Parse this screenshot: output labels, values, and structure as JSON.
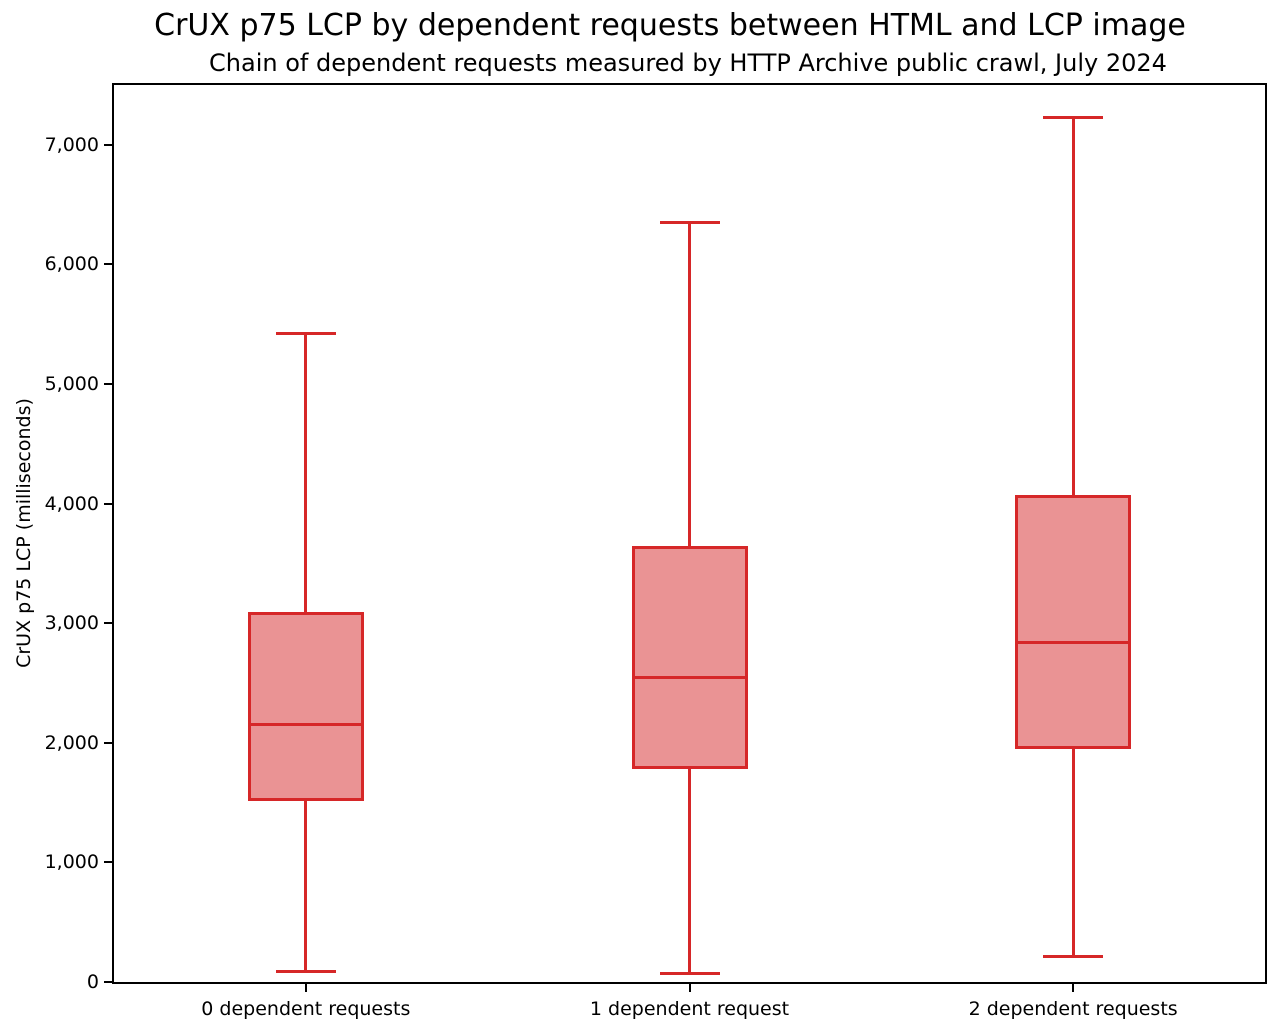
{
  "chart_data": {
    "type": "box",
    "title": "CrUX p75 LCP by dependent requests between HTML and LCP image",
    "subtitle": "Chain of dependent requests measured by HTTP Archive public crawl, July 2024",
    "ylabel": "CrUX p75 LCP (milliseconds)",
    "xlabel": "",
    "ylim": [
      0,
      7500
    ],
    "yticks": [
      {
        "value": 0,
        "label": "0"
      },
      {
        "value": 1000,
        "label": "1,000"
      },
      {
        "value": 2000,
        "label": "2,000"
      },
      {
        "value": 3000,
        "label": "3,000"
      },
      {
        "value": 4000,
        "label": "4,000"
      },
      {
        "value": 5000,
        "label": "5,000"
      },
      {
        "value": 6000,
        "label": "6,000"
      },
      {
        "value": 7000,
        "label": "7,000"
      }
    ],
    "categories": [
      "0 dependent requests",
      "1 dependent request",
      "2 dependent requests"
    ],
    "series": [
      {
        "category": "0 dependent requests",
        "whisker_low": 85,
        "q1": 1530,
        "median": 2155,
        "q3": 3080,
        "whisker_high": 5420
      },
      {
        "category": "1 dependent request",
        "whisker_low": 70,
        "q1": 1790,
        "median": 2550,
        "q3": 3630,
        "whisker_high": 6350
      },
      {
        "category": "2 dependent requests",
        "whisker_low": 210,
        "q1": 1960,
        "median": 2840,
        "q3": 4060,
        "whisker_high": 7230
      }
    ],
    "colors": {
      "box_line": "#d62728",
      "box_fill": "#ea9394",
      "axis": "#000000",
      "text": "#000000"
    },
    "layout": {
      "grid": false,
      "legend": "none",
      "unit": "milliseconds"
    }
  }
}
